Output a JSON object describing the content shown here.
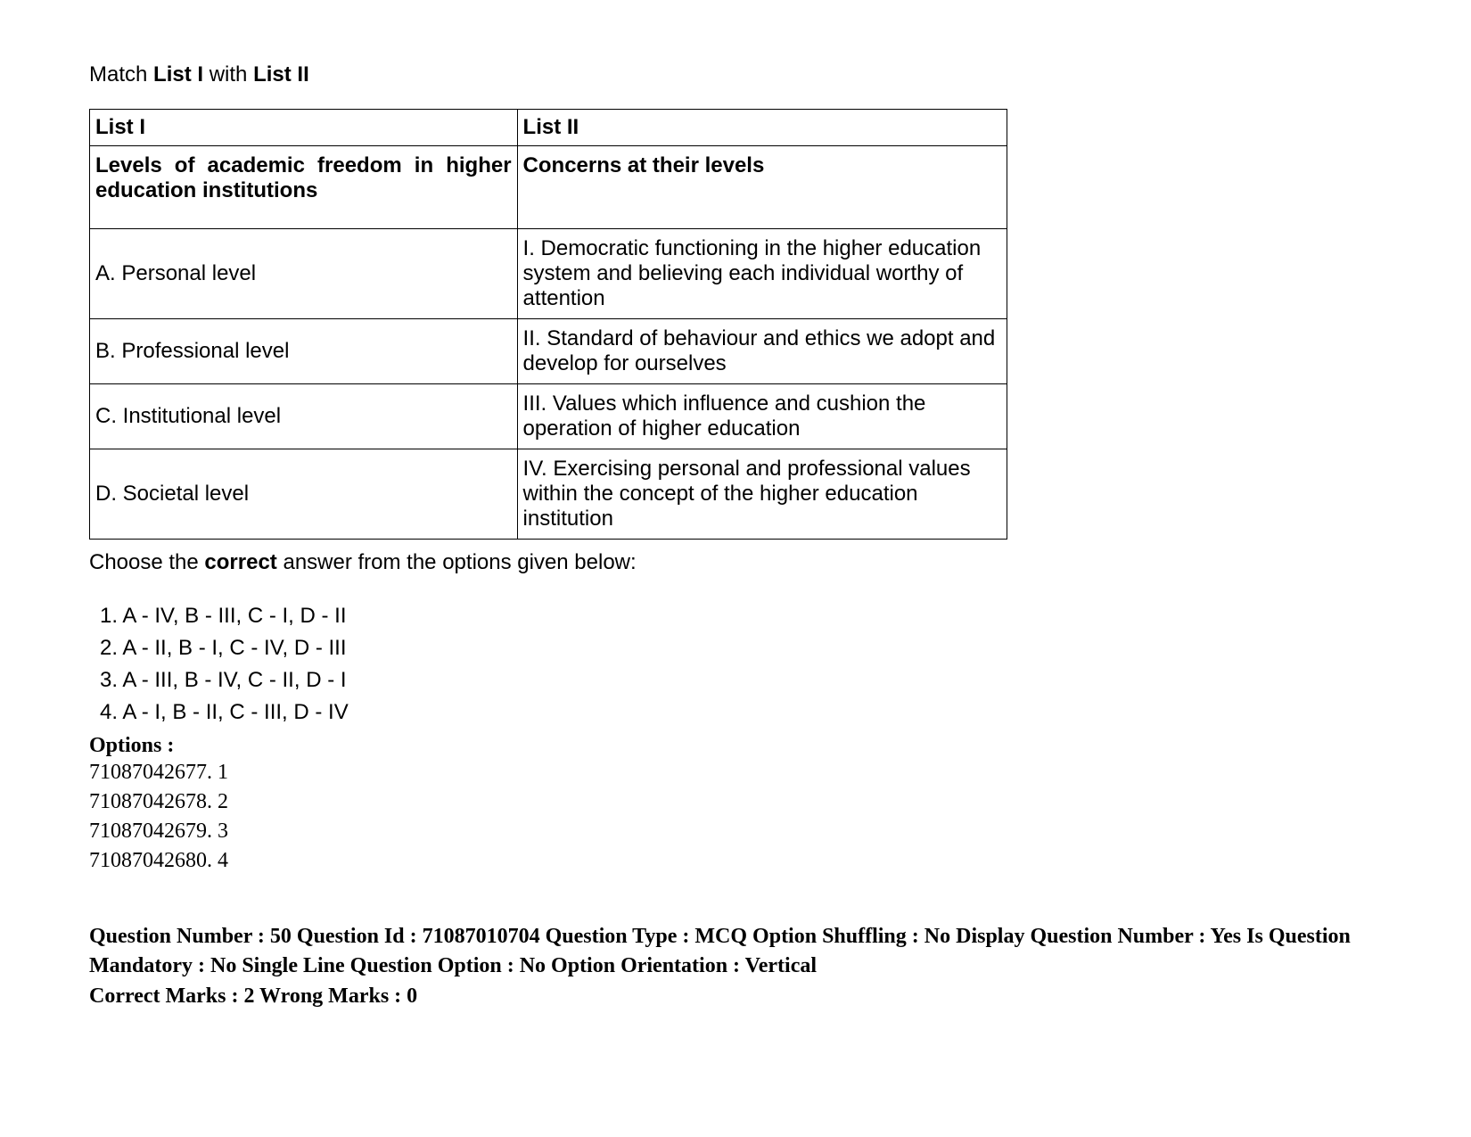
{
  "instruction": {
    "pre": "Match ",
    "bold1": "List I",
    "mid": " with ",
    "bold2": "List II"
  },
  "table": {
    "header": {
      "left": "List I",
      "right": "List II"
    },
    "subheader": {
      "left": "Levels of academic freedom in higher education institutions",
      "right": "Concerns at their levels"
    },
    "rows": [
      {
        "left": "A. Personal level",
        "right": "I. Democratic functioning in the higher education system and believing each individual worthy of attention"
      },
      {
        "left": "B. Professional level",
        "right": "II. Standard of behaviour and ethics we adopt and develop for ourselves"
      },
      {
        "left": "C. Institutional level",
        "right": "III. Values which influence and cushion the operation of higher education"
      },
      {
        "left": "D. Societal level",
        "right": "IV. Exercising personal and professional values within the concept of the higher education institution"
      }
    ]
  },
  "choose": {
    "pre": "Choose the ",
    "bold": "correct",
    "post": " answer from the options given below:"
  },
  "answer_options": [
    "1. A - IV, B - III, C - I, D - II",
    "2. A - II, B - I, C - IV, D - III",
    "3. A - III, B - IV, C - II, D - I",
    "4. A - I, B - II, C - III, D - IV"
  ],
  "options_heading": "Options :",
  "option_codes": [
    "71087042677. 1",
    "71087042678. 2",
    "71087042679. 3",
    "71087042680. 4"
  ],
  "meta": {
    "line1": "Question Number : 50 Question Id : 71087010704 Question Type : MCQ Option Shuffling : No Display Question Number : Yes Is Question Mandatory : No Single Line Question Option : No Option Orientation : Vertical",
    "line2": "Correct Marks : 2 Wrong Marks : 0"
  }
}
